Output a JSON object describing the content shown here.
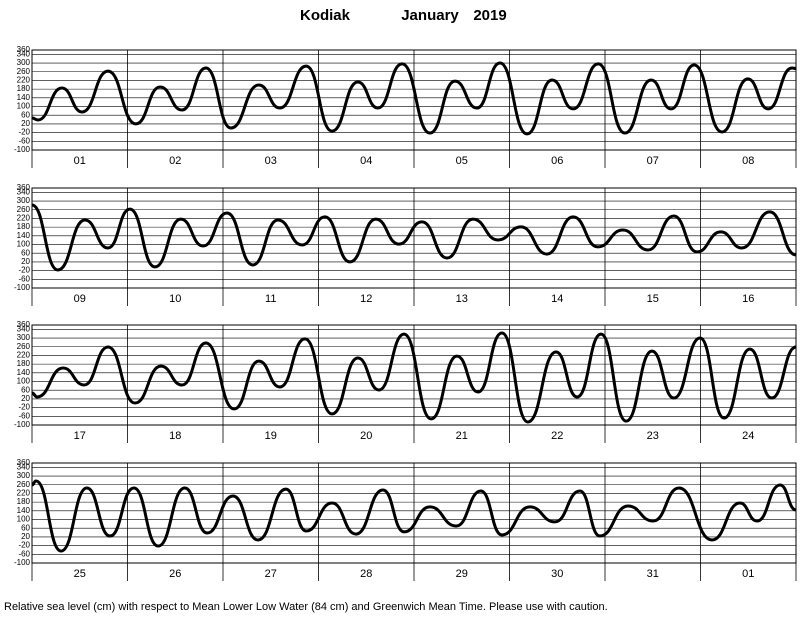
{
  "header": {
    "place": "Kodiak",
    "month": "January",
    "year": "2019"
  },
  "footer": "Relative sea level (cm) with respect to Mean Lower Low Water (84 cm) and Greenwich Mean Time. Please use with caution.",
  "chart_data": [
    {
      "type": "line",
      "color": "#000000",
      "xlim": [
        0,
        192
      ],
      "xticks": [
        0,
        24,
        48,
        72,
        96,
        120,
        144,
        168,
        192
      ],
      "ylim": [
        -100,
        360
      ],
      "yticks": [
        -100,
        -60,
        -20,
        20,
        60,
        100,
        140,
        180,
        220,
        260,
        300,
        340,
        360
      ],
      "grid": true,
      "categories": [
        "01",
        "02",
        "03",
        "04",
        "05",
        "06",
        "07",
        "08"
      ],
      "x": [
        0,
        1.5,
        7.5,
        12.6,
        19.1,
        26.1,
        32.2,
        37.7,
        43.7,
        50.0,
        57.0,
        62.3,
        68.9,
        75.4,
        81.9,
        86.9,
        93.0,
        100.0,
        106.3,
        111.8,
        117.6,
        124.4,
        130.7,
        136.0,
        142.3,
        149.0,
        155.6,
        160.6,
        166.4,
        173.4,
        179.9,
        185.0,
        191.0,
        192
      ],
      "values": [
        47,
        38,
        185,
        75,
        263,
        20,
        190,
        84,
        277,
        1,
        199,
        93,
        286,
        -13,
        213,
        93,
        296,
        -22,
        217,
        93,
        300,
        -26,
        222,
        89,
        296,
        -22,
        222,
        89,
        291,
        -17,
        227,
        89,
        277,
        275
      ]
    },
    {
      "type": "line",
      "color": "#000000",
      "xlim": [
        0,
        192
      ],
      "xticks": [
        0,
        24,
        48,
        72,
        96,
        120,
        144,
        168,
        192
      ],
      "ylim": [
        -100,
        360
      ],
      "yticks": [
        -100,
        -60,
        -20,
        20,
        60,
        100,
        140,
        180,
        220,
        260,
        300,
        340,
        360
      ],
      "grid": true,
      "categories": [
        "09",
        "10",
        "11",
        "12",
        "13",
        "14",
        "15",
        "16"
      ],
      "x": [
        0,
        6.5,
        13.3,
        19.1,
        24.6,
        30.9,
        37.4,
        43.0,
        49.0,
        55.5,
        61.8,
        67.9,
        73.6,
        79.9,
        86.4,
        92.2,
        98.0,
        104.3,
        110.8,
        117.1,
        122.9,
        129.4,
        136.0,
        142.2,
        148.5,
        154.8,
        161.3,
        167.1,
        173.1,
        178.4,
        185.4,
        192
      ],
      "values": [
        282,
        -17,
        213,
        84,
        263,
        -3,
        217,
        93,
        245,
        6,
        213,
        98,
        227,
        20,
        217,
        102,
        204,
        38,
        217,
        121,
        181,
        56,
        227,
        89,
        167,
        75,
        231,
        66,
        158,
        84,
        250,
        52
      ]
    },
    {
      "type": "line",
      "color": "#000000",
      "xlim": [
        0,
        192
      ],
      "xticks": [
        0,
        24,
        48,
        72,
        96,
        120,
        144,
        168,
        192
      ],
      "ylim": [
        -100,
        360
      ],
      "yticks": [
        -100,
        -60,
        -20,
        20,
        60,
        100,
        140,
        180,
        220,
        260,
        300,
        340,
        360
      ],
      "grid": true,
      "categories": [
        "17",
        "18",
        "19",
        "20",
        "21",
        "22",
        "23",
        "24"
      ],
      "x": [
        0,
        1.3,
        7.8,
        13.1,
        19.1,
        25.9,
        32.4,
        37.7,
        43.7,
        50.8,
        57.0,
        62.3,
        68.6,
        75.4,
        81.9,
        87.2,
        93.5,
        100.3,
        106.8,
        112.1,
        118.1,
        124.6,
        131.7,
        137.0,
        143.0,
        149.3,
        155.8,
        161.3,
        167.9,
        173.9,
        180.4,
        185.9,
        192
      ],
      "values": [
        47,
        29,
        162,
        84,
        259,
        1,
        171,
        84,
        277,
        -26,
        194,
        75,
        296,
        -49,
        208,
        61,
        318,
        -72,
        217,
        52,
        323,
        -86,
        236,
        29,
        318,
        -82,
        240,
        24,
        300,
        -68,
        249,
        24,
        259
      ]
    },
    {
      "type": "line",
      "color": "#000000",
      "xlim": [
        0,
        192
      ],
      "xticks": [
        0,
        24,
        48,
        72,
        96,
        120,
        144,
        168,
        192
      ],
      "ylim": [
        -100,
        360
      ],
      "yticks": [
        -100,
        -60,
        -20,
        20,
        60,
        100,
        140,
        180,
        220,
        260,
        300,
        340,
        360
      ],
      "grid": true,
      "categories": [
        "25",
        "26",
        "27",
        "28",
        "29",
        "30",
        "31",
        "01"
      ],
      "x": [
        0,
        1.0,
        7.3,
        13.8,
        19.6,
        25.6,
        31.7,
        38.4,
        44.0,
        50.5,
        56.8,
        63.8,
        68.9,
        75.4,
        81.4,
        88.2,
        93.5,
        100.0,
        106.6,
        112.8,
        118.1,
        125.1,
        131.4,
        137.7,
        142.7,
        149.8,
        156.1,
        162.6,
        170.9,
        177.9,
        182.2,
        188.0,
        192
      ],
      "values": [
        259,
        277,
        -45,
        245,
        24,
        245,
        -22,
        245,
        38,
        208,
        6,
        240,
        47,
        176,
        33,
        236,
        43,
        158,
        70,
        231,
        29,
        158,
        89,
        231,
        24,
        162,
        93,
        245,
        6,
        176,
        93,
        259,
        144
      ]
    }
  ]
}
